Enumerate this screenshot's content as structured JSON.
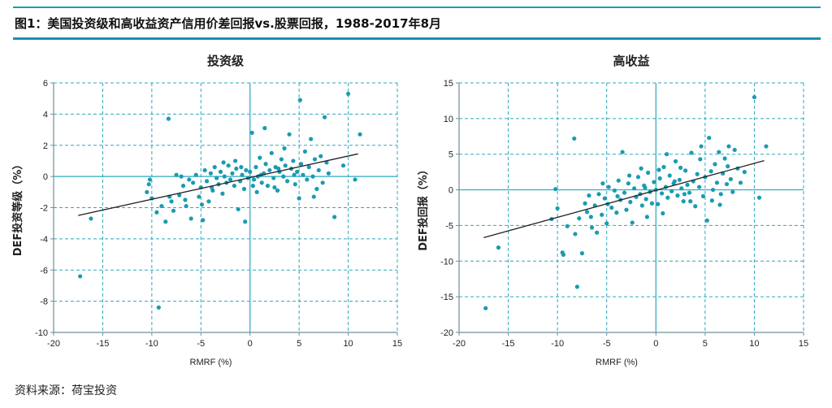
{
  "header": {
    "title": "图1：美国投资级和高收益资产信用价差回报vs.股票回报，1988-2017年8月"
  },
  "footer": {
    "source": "资料来源：荷宝投资"
  },
  "colors": {
    "accent": "#1a8fb0",
    "point": "#1a9bb0",
    "grid": "#2aa8c0",
    "frame": "#6f8f99"
  },
  "chart_data": [
    {
      "type": "scatter",
      "title": "投资级",
      "xlabel": "RMRF (%)",
      "ylabel": "DEF投资等级（%）",
      "xlim": [
        -20,
        15
      ],
      "ylim": [
        -10,
        6
      ],
      "xticks": [
        -20,
        -15,
        -10,
        -5,
        0,
        5,
        10,
        15
      ],
      "yticks": [
        -10,
        -8,
        -6,
        -4,
        -2,
        0,
        2,
        4,
        6
      ],
      "grid": true,
      "trendline": {
        "x": [
          -17.5,
          11
        ],
        "y": [
          -2.5,
          1.45
        ]
      },
      "points": [
        [
          -17.3,
          -6.4
        ],
        [
          -16.2,
          -2.7
        ],
        [
          -10.5,
          -1.0
        ],
        [
          -10.3,
          -0.5
        ],
        [
          -10.2,
          -0.2
        ],
        [
          -10.0,
          -1.4
        ],
        [
          -9.5,
          -2.3
        ],
        [
          -9.3,
          -8.4
        ],
        [
          -9.0,
          -1.9
        ],
        [
          -8.6,
          -2.9
        ],
        [
          -8.3,
          3.7
        ],
        [
          -8.0,
          -1.6
        ],
        [
          -7.8,
          -2.2
        ],
        [
          -7.5,
          0.1
        ],
        [
          -7.2,
          -1.2
        ],
        [
          -7.0,
          0.0
        ],
        [
          -6.8,
          -0.6
        ],
        [
          -6.5,
          -1.9
        ],
        [
          -6.2,
          -0.2
        ],
        [
          -6.0,
          -2.7
        ],
        [
          -5.8,
          -0.4
        ],
        [
          -5.5,
          0.1
        ],
        [
          -5.2,
          -1.3
        ],
        [
          -5.0,
          -0.7
        ],
        [
          -4.8,
          -2.8
        ],
        [
          -4.6,
          0.4
        ],
        [
          -4.4,
          -0.3
        ],
        [
          -4.2,
          -1.6
        ],
        [
          -4.0,
          0.2
        ],
        [
          -3.8,
          -0.9
        ],
        [
          -3.6,
          0.6
        ],
        [
          -3.4,
          -0.1
        ],
        [
          -3.2,
          -0.5
        ],
        [
          -3.0,
          0.3
        ],
        [
          -2.8,
          -1.1
        ],
        [
          -2.6,
          0.0
        ],
        [
          -2.4,
          -0.4
        ],
        [
          -2.2,
          0.7
        ],
        [
          -2.0,
          -0.2
        ],
        [
          -1.8,
          0.2
        ],
        [
          -1.6,
          -0.6
        ],
        [
          -1.4,
          0.5
        ],
        [
          -1.2,
          -2.1
        ],
        [
          -1.0,
          -0.3
        ],
        [
          -0.8,
          0.1
        ],
        [
          -0.6,
          -0.8
        ],
        [
          -0.5,
          -2.9
        ],
        [
          -0.4,
          0.4
        ],
        [
          -0.2,
          -0.1
        ],
        [
          0.0,
          0.3
        ],
        [
          0.2,
          2.8
        ],
        [
          0.4,
          -0.2
        ],
        [
          0.6,
          0.6
        ],
        [
          0.8,
          0.0
        ],
        [
          1.0,
          1.2
        ],
        [
          1.2,
          -0.4
        ],
        [
          1.4,
          0.2
        ],
        [
          1.5,
          3.1
        ],
        [
          1.6,
          0.8
        ],
        [
          1.8,
          -0.6
        ],
        [
          2.0,
          0.4
        ],
        [
          2.2,
          1.5
        ],
        [
          2.4,
          -0.1
        ],
        [
          2.6,
          0.6
        ],
        [
          2.8,
          -0.9
        ],
        [
          3.0,
          0.3
        ],
        [
          3.2,
          1.1
        ],
        [
          3.4,
          0.0
        ],
        [
          3.6,
          0.7
        ],
        [
          3.8,
          -0.3
        ],
        [
          4.0,
          2.7
        ],
        [
          4.2,
          0.5
        ],
        [
          4.4,
          1.0
        ],
        [
          4.6,
          -0.5
        ],
        [
          4.8,
          0.3
        ],
        [
          5.0,
          -1.4
        ],
        [
          5.1,
          4.9
        ],
        [
          5.2,
          0.8
        ],
        [
          5.4,
          0.1
        ],
        [
          5.6,
          1.6
        ],
        [
          5.8,
          -0.2
        ],
        [
          6.0,
          0.6
        ],
        [
          6.2,
          2.4
        ],
        [
          6.4,
          0.0
        ],
        [
          6.6,
          1.1
        ],
        [
          6.8,
          -0.8
        ],
        [
          7.0,
          0.4
        ],
        [
          7.2,
          1.3
        ],
        [
          7.4,
          -0.4
        ],
        [
          7.6,
          3.8
        ],
        [
          7.8,
          0.9
        ],
        [
          8.0,
          0.2
        ],
        [
          8.6,
          -2.6
        ],
        [
          9.5,
          0.7
        ],
        [
          10.0,
          5.3
        ],
        [
          10.7,
          -0.2
        ],
        [
          11.2,
          2.7
        ],
        [
          -3.9,
          -0.7
        ],
        [
          -1.5,
          1.0
        ],
        [
          0.7,
          -1.0
        ],
        [
          2.5,
          -0.7
        ],
        [
          3.5,
          1.8
        ],
        [
          6.5,
          -1.3
        ],
        [
          -2.7,
          0.9
        ],
        [
          1.1,
          0.1
        ],
        [
          2.9,
          0.5
        ],
        [
          4.5,
          0.1
        ],
        [
          -0.9,
          0.6
        ],
        [
          0.3,
          -0.6
        ],
        [
          -4.9,
          -1.8
        ],
        [
          -6.6,
          -1.5
        ],
        [
          -8.2,
          -1.3
        ]
      ]
    },
    {
      "type": "scatter",
      "title": "高收益",
      "xlabel": "RMRF (%)",
      "ylabel": "DEF投回报（%）",
      "xlim": [
        -20,
        15
      ],
      "ylim": [
        -20,
        15
      ],
      "xticks": [
        -20,
        -15,
        -10,
        -5,
        0,
        5,
        10,
        15
      ],
      "yticks": [
        -20,
        -15,
        -10,
        -5,
        0,
        5,
        10,
        15
      ],
      "grid": true,
      "trendline": {
        "x": [
          -17.5,
          11
        ],
        "y": [
          -6.7,
          4.1
        ]
      },
      "points": [
        [
          -17.3,
          -16.6
        ],
        [
          -16.0,
          -8.1
        ],
        [
          -10.6,
          -4.1
        ],
        [
          -10.2,
          0.1
        ],
        [
          -10.0,
          -2.6
        ],
        [
          -9.5,
          -8.8
        ],
        [
          -9.4,
          -9.1
        ],
        [
          -9.0,
          -5.1
        ],
        [
          -8.3,
          7.2
        ],
        [
          -8.0,
          -13.6
        ],
        [
          -7.8,
          -4.0
        ],
        [
          -7.5,
          -8.9
        ],
        [
          -7.2,
          -1.9
        ],
        [
          -7.0,
          -3.1
        ],
        [
          -6.8,
          -0.8
        ],
        [
          -6.5,
          -5.3
        ],
        [
          -6.2,
          -2.2
        ],
        [
          -6.0,
          -6.0
        ],
        [
          -5.8,
          -0.6
        ],
        [
          -5.5,
          -3.5
        ],
        [
          -5.2,
          -1.2
        ],
        [
          -5.0,
          -4.7
        ],
        [
          -4.8,
          0.4
        ],
        [
          -4.5,
          -2.5
        ],
        [
          -4.2,
          -0.1
        ],
        [
          -4.0,
          -3.2
        ],
        [
          -3.8,
          1.3
        ],
        [
          -3.6,
          -1.4
        ],
        [
          -3.4,
          5.3
        ],
        [
          -3.2,
          -0.4
        ],
        [
          -3.0,
          -2.8
        ],
        [
          -2.8,
          0.9
        ],
        [
          -2.6,
          -1.7
        ],
        [
          -2.4,
          -4.6
        ],
        [
          -2.2,
          0.2
        ],
        [
          -2.0,
          -1.0
        ],
        [
          -1.8,
          1.8
        ],
        [
          -1.6,
          -0.6
        ],
        [
          -1.4,
          -2.2
        ],
        [
          -1.2,
          0.6
        ],
        [
          -1.0,
          -1.3
        ],
        [
          -0.8,
          2.4
        ],
        [
          -0.6,
          -0.3
        ],
        [
          -0.4,
          -1.9
        ],
        [
          -0.2,
          1.1
        ],
        [
          0.0,
          0.0
        ],
        [
          0.2,
          -2.0
        ],
        [
          0.4,
          1.6
        ],
        [
          0.6,
          -0.5
        ],
        [
          0.8,
          3.2
        ],
        [
          1.0,
          0.4
        ],
        [
          1.2,
          -1.1
        ],
        [
          1.4,
          2.0
        ],
        [
          1.6,
          -0.2
        ],
        [
          1.8,
          0.9
        ],
        [
          2.0,
          4.0
        ],
        [
          2.2,
          -0.8
        ],
        [
          2.4,
          1.4
        ],
        [
          2.6,
          0.2
        ],
        [
          2.8,
          -1.6
        ],
        [
          3.0,
          2.7
        ],
        [
          3.2,
          0.7
        ],
        [
          3.4,
          -0.4
        ],
        [
          3.6,
          5.2
        ],
        [
          3.8,
          1.2
        ],
        [
          4.0,
          -2.3
        ],
        [
          4.2,
          2.2
        ],
        [
          4.4,
          0.4
        ],
        [
          4.6,
          6.1
        ],
        [
          4.8,
          -0.9
        ],
        [
          5.0,
          1.8
        ],
        [
          5.2,
          -4.3
        ],
        [
          5.4,
          7.3
        ],
        [
          5.6,
          2.6
        ],
        [
          5.8,
          0.0
        ],
        [
          6.0,
          3.6
        ],
        [
          6.2,
          1.0
        ],
        [
          6.4,
          5.3
        ],
        [
          6.6,
          -0.6
        ],
        [
          6.8,
          2.3
        ],
        [
          7.0,
          4.4
        ],
        [
          7.2,
          0.8
        ],
        [
          7.4,
          6.1
        ],
        [
          7.6,
          1.5
        ],
        [
          7.8,
          -0.3
        ],
        [
          8.0,
          5.6
        ],
        [
          8.3,
          3.0
        ],
        [
          8.6,
          1.0
        ],
        [
          9.0,
          2.5
        ],
        [
          10.0,
          13.0
        ],
        [
          10.5,
          -1.1
        ],
        [
          11.2,
          6.1
        ],
        [
          -3.9,
          -0.9
        ],
        [
          -1.5,
          3.0
        ],
        [
          0.7,
          -3.3
        ],
        [
          2.5,
          3.1
        ],
        [
          3.5,
          -1.6
        ],
        [
          4.5,
          4.3
        ],
        [
          6.5,
          -2.1
        ],
        [
          -2.7,
          2.0
        ],
        [
          1.1,
          5.0
        ],
        [
          2.9,
          -0.6
        ],
        [
          -0.9,
          -3.8
        ],
        [
          0.3,
          2.8
        ],
        [
          -4.9,
          -2.0
        ],
        [
          -6.6,
          -3.8
        ],
        [
          -8.2,
          -6.2
        ],
        [
          5.7,
          -1.5
        ],
        [
          7.3,
          3.3
        ],
        [
          -5.4,
          0.9
        ],
        [
          1.9,
          1.2
        ],
        [
          -1.1,
          0.3
        ]
      ]
    }
  ]
}
